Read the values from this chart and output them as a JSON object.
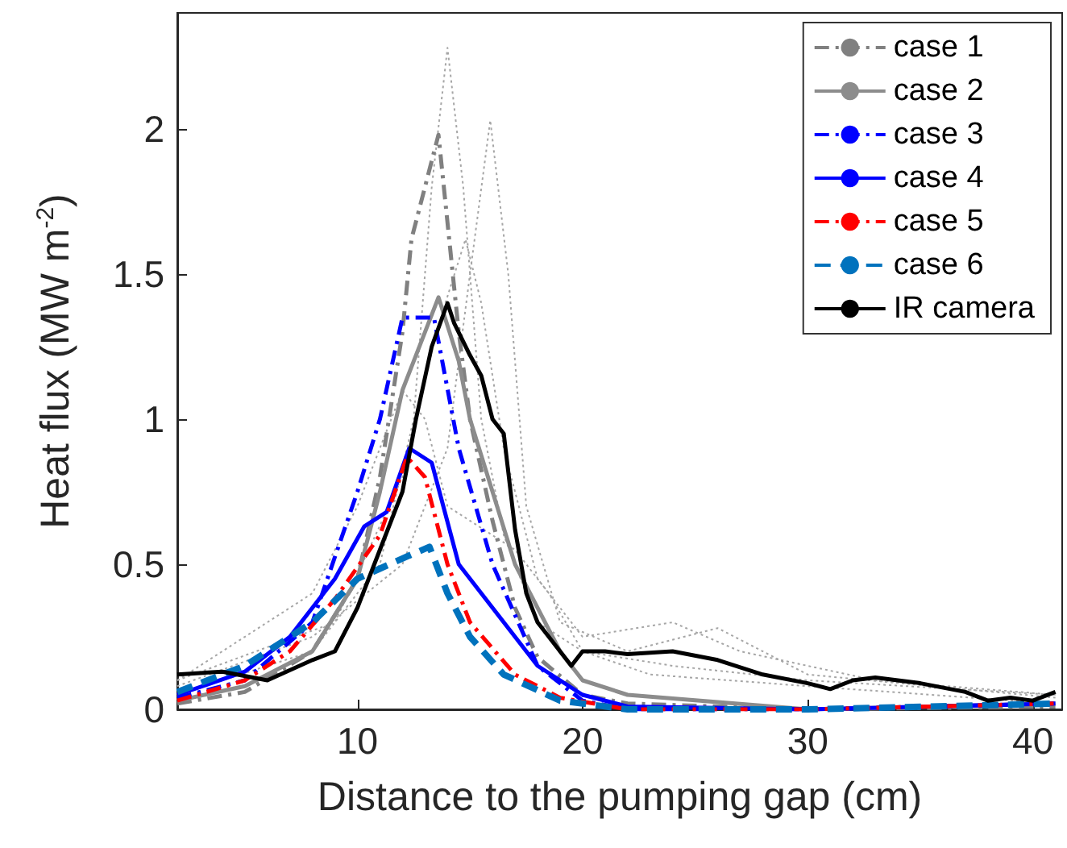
{
  "chart_data": {
    "type": "line",
    "xlabel": "Distance to the pumping gap (cm)",
    "ylabel": "Heat flux (MW m$^{-2}$)",
    "xlim": [
      2,
      41.3
    ],
    "xticks": [
      10,
      20,
      30,
      40
    ],
    "ylim": [
      0,
      2.4
    ],
    "yticks": [
      0,
      0.5,
      1,
      1.5,
      2
    ],
    "grid": false,
    "legend": "top right",
    "marker": "none",
    "series": [
      {
        "color": "#a6a6a6",
        "line_style": "dotted",
        "x": [
          2,
          8,
          11,
          12.5,
          13.3,
          14,
          14.7,
          15.5,
          16.5,
          18,
          20,
          24,
          30,
          41
        ],
        "values": [
          0.05,
          0.2,
          0.5,
          1.0,
          1.8,
          2.28,
          1.8,
          1.0,
          0.6,
          0.3,
          0.2,
          0.15,
          0.1,
          0.05
        ]
      },
      {
        "color": "#a6a6a6",
        "line_style": "dotted",
        "x": [
          2,
          8,
          12,
          14,
          15,
          15.9,
          16.7,
          17.5,
          19,
          22,
          26,
          30,
          41
        ],
        "values": [
          0.08,
          0.25,
          0.5,
          0.9,
          1.5,
          2.03,
          1.5,
          0.7,
          0.3,
          0.2,
          0.28,
          0.12,
          0.04
        ]
      },
      {
        "color": "#a6a6a6",
        "line_style": "dotted",
        "x": [
          2,
          9,
          12,
          13.5,
          14.8,
          15.5,
          16.5,
          18,
          20,
          24,
          27,
          33,
          41
        ],
        "values": [
          0.1,
          0.3,
          0.8,
          1.3,
          1.62,
          1.4,
          0.9,
          0.45,
          0.25,
          0.3,
          0.2,
          0.1,
          0.05
        ]
      },
      {
        "color": "#a6a6a6",
        "line_style": "dotted",
        "x": [
          2,
          8,
          10,
          12,
          13,
          14,
          17,
          18.5,
          20,
          23,
          30,
          41
        ],
        "values": [
          0.1,
          0.4,
          0.7,
          1.1,
          1.0,
          0.7,
          0.55,
          0.4,
          0.2,
          0.12,
          0.08,
          0.02
        ]
      },
      {
        "name": "case 1",
        "color": "#808080",
        "line_style": "dashdot",
        "x": [
          2,
          5,
          8,
          10,
          11,
          12,
          12.4,
          13.6,
          14.5,
          15,
          16,
          17,
          18,
          20,
          22,
          30,
          41
        ],
        "values": [
          0.02,
          0.06,
          0.2,
          0.45,
          0.8,
          1.3,
          1.62,
          1.98,
          1.3,
          1.0,
          0.65,
          0.35,
          0.18,
          0.05,
          0.02,
          0.0,
          0.01
        ]
      },
      {
        "name": "case 2",
        "color": "#8c8c8c",
        "line_style": "solid",
        "x": [
          2,
          5,
          8,
          10,
          11,
          12,
          13.6,
          14.5,
          15,
          16,
          17,
          19,
          20,
          22,
          30,
          41
        ],
        "values": [
          0.03,
          0.08,
          0.2,
          0.45,
          0.75,
          1.1,
          1.42,
          1.2,
          1.0,
          0.75,
          0.5,
          0.2,
          0.1,
          0.05,
          0.0,
          0.02
        ]
      },
      {
        "name": "case 3",
        "color": "#0000ff",
        "line_style": "dashdot",
        "x": [
          2,
          5,
          8,
          10,
          11,
          12,
          13.4,
          14.5,
          16,
          18,
          20,
          22,
          30,
          41
        ],
        "values": [
          0.04,
          0.1,
          0.3,
          0.75,
          1.0,
          1.35,
          1.35,
          0.9,
          0.5,
          0.15,
          0.03,
          0.0,
          0.0,
          0.02
        ]
      },
      {
        "name": "case 4",
        "color": "#0000ff",
        "line_style": "solid",
        "x": [
          2,
          5,
          7,
          9,
          10.3,
          11.3,
          12.3,
          13.3,
          14.5,
          16,
          18,
          20,
          22,
          30,
          41
        ],
        "values": [
          0.05,
          0.13,
          0.25,
          0.45,
          0.63,
          0.68,
          0.9,
          0.85,
          0.5,
          0.35,
          0.15,
          0.05,
          0.01,
          0.0,
          0.02
        ]
      },
      {
        "name": "case 5",
        "color": "#ff0000",
        "line_style": "dashdot",
        "x": [
          2,
          5,
          7,
          9,
          11,
          12.2,
          13,
          14,
          15,
          17,
          19,
          22,
          30,
          41
        ],
        "values": [
          0.03,
          0.1,
          0.2,
          0.38,
          0.6,
          0.87,
          0.8,
          0.5,
          0.3,
          0.12,
          0.04,
          0.0,
          0.0,
          0.02
        ]
      },
      {
        "name": "case 6",
        "color": "#0072bd",
        "line_style": "dashed",
        "x": [
          2,
          5,
          8,
          10,
          12,
          13.2,
          14,
          15,
          16.5,
          19,
          22,
          30,
          41
        ],
        "values": [
          0.06,
          0.15,
          0.3,
          0.45,
          0.52,
          0.56,
          0.4,
          0.25,
          0.12,
          0.03,
          0.0,
          0.0,
          0.02
        ]
      },
      {
        "name": "IR camera",
        "color": "#000000",
        "line_style": "solid",
        "x": [
          2,
          4,
          6,
          8,
          9,
          10,
          11,
          12,
          12.6,
          13.3,
          14,
          14.3,
          15,
          15.5,
          16,
          16.5,
          17,
          17.5,
          18,
          18.5,
          19,
          19.5,
          20,
          21,
          22,
          24,
          26,
          28,
          30,
          31,
          32,
          33,
          35,
          37,
          38,
          39,
          40,
          41
        ],
        "values": [
          0.12,
          0.13,
          0.1,
          0.17,
          0.2,
          0.35,
          0.55,
          0.75,
          1.0,
          1.25,
          1.4,
          1.33,
          1.22,
          1.15,
          1.0,
          0.95,
          0.62,
          0.4,
          0.3,
          0.25,
          0.2,
          0.15,
          0.2,
          0.2,
          0.19,
          0.2,
          0.17,
          0.12,
          0.09,
          0.07,
          0.1,
          0.11,
          0.09,
          0.06,
          0.03,
          0.04,
          0.03,
          0.06
        ]
      }
    ]
  }
}
